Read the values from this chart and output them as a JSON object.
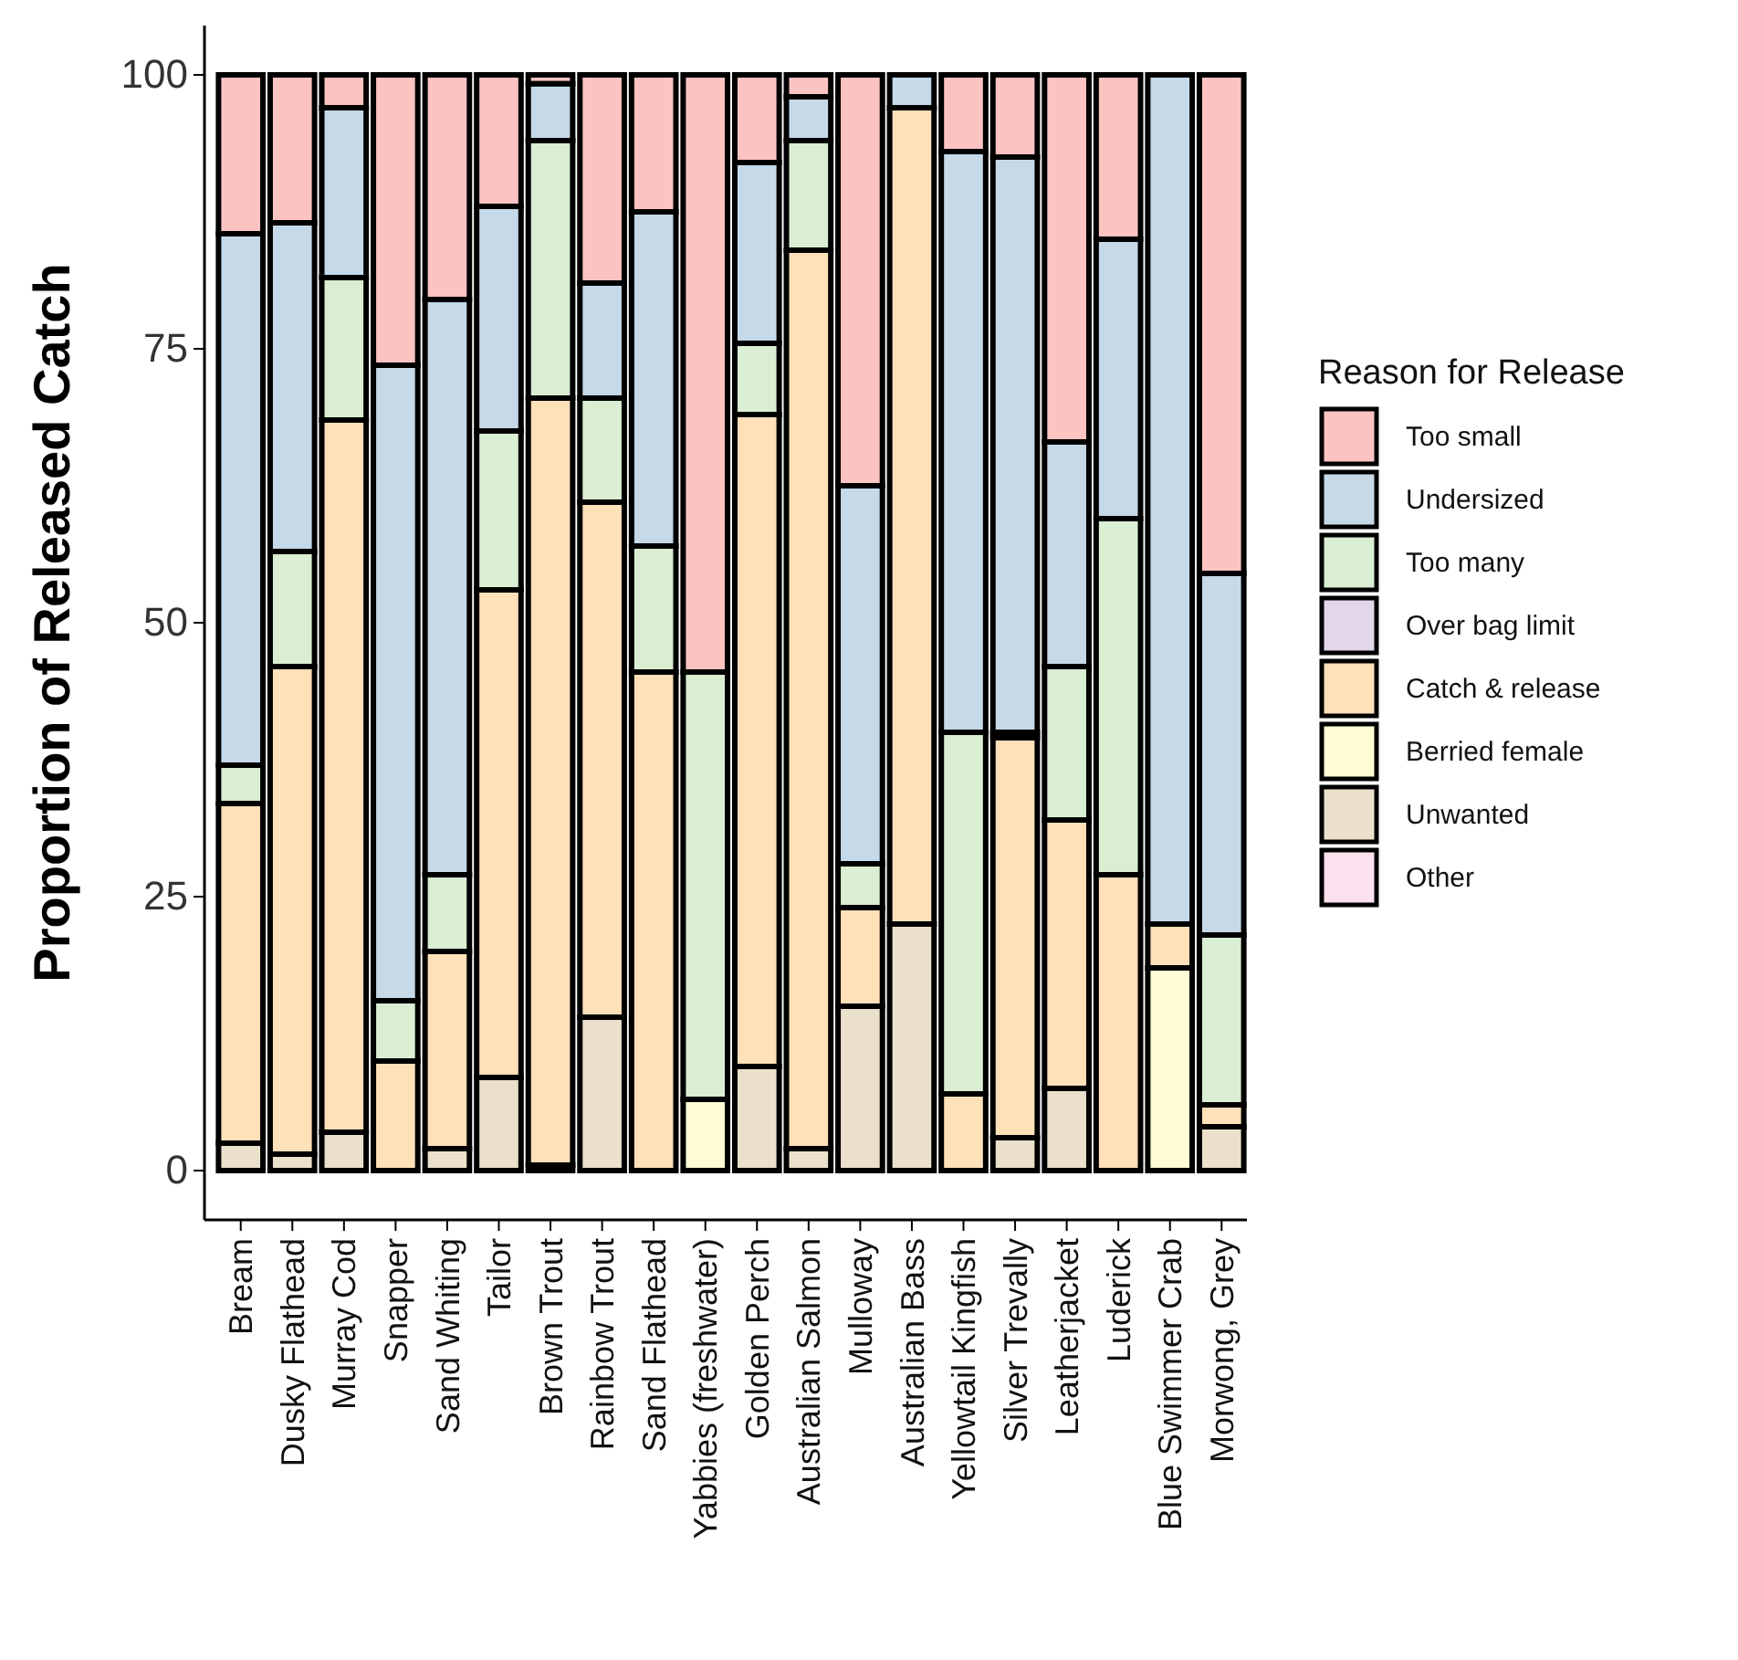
{
  "chart_data": {
    "type": "bar",
    "stacked": true,
    "ylabel": "Proportion of Released Catch",
    "legend_title": "Reason for Release",
    "legend": "right",
    "grid": false,
    "categories": [
      "Bream",
      "Dusky Flathead",
      "Murray Cod",
      "Snapper",
      "Sand Whiting",
      "Tailor",
      "Brown Trout",
      "Rainbow Trout",
      "Sand Flathead",
      "Yabbies (freshwater)",
      "Golden Perch",
      "Australian Salmon",
      "Mulloway",
      "Australian Bass",
      "Yellowtail Kingfish",
      "Silver Trevally",
      "Leatherjacket",
      "Luderick",
      "Blue Swimmer Crab",
      "Morwong, Grey"
    ],
    "ylim": [
      -4.5,
      104.5
    ],
    "yticks": [
      0,
      25,
      50,
      75,
      100
    ],
    "series": [
      {
        "name": "Unwanted",
        "color": "#ebe0cc",
        "values": [
          2.5,
          1.5,
          3.5,
          0,
          2,
          8.5,
          0.5,
          14,
          0,
          0,
          9.5,
          2,
          15,
          22.5,
          0,
          3,
          7.5,
          0,
          0,
          4
        ]
      },
      {
        "name": "Berried female",
        "color": "#fffdd4",
        "values": [
          0,
          0,
          0,
          0,
          0,
          0,
          0,
          0,
          0,
          6.5,
          0,
          0,
          0,
          0,
          0,
          0,
          0,
          0,
          18.5,
          0
        ]
      },
      {
        "name": "Catch & release",
        "color": "#fee0b9",
        "values": [
          31,
          44.5,
          65,
          10,
          18,
          44.5,
          70,
          47,
          45.5,
          0,
          59.5,
          82,
          9,
          74.5,
          7,
          36.5,
          24.5,
          27,
          4,
          2
        ]
      },
      {
        "name": "Over bag limit",
        "color": "#e2d6ea",
        "values": [
          0,
          0,
          0,
          0,
          0,
          0,
          0,
          0,
          0,
          0,
          0,
          0,
          0,
          0,
          0,
          0,
          0,
          0,
          0,
          0
        ]
      },
      {
        "name": "Too many",
        "color": "#d9eed3",
        "values": [
          3.5,
          10.5,
          13,
          5.5,
          7,
          14.5,
          23.5,
          9.5,
          11.5,
          39,
          6.5,
          10,
          4,
          0,
          33,
          0.5,
          14,
          32.5,
          0,
          15.5
        ]
      },
      {
        "name": "Undersized",
        "color": "#c6d9e8",
        "values": [
          48.5,
          30,
          15.5,
          58,
          52.5,
          20.5,
          5.2,
          10.5,
          30.5,
          0,
          16.5,
          4,
          34.5,
          3,
          53,
          52.5,
          20.5,
          25.5,
          77.5,
          33
        ]
      },
      {
        "name": "Too small",
        "color": "#fbc4c2",
        "values": [
          14.5,
          13.5,
          3,
          26.5,
          20.5,
          12,
          0.8,
          19,
          12.5,
          54.5,
          8,
          2,
          37.5,
          0,
          7,
          7.5,
          33.5,
          15,
          0,
          45.5
        ]
      },
      {
        "name": "Other",
        "color": "#fde0ee",
        "values": [
          0,
          0,
          0,
          0,
          0,
          0,
          0,
          0,
          0,
          0,
          0,
          0,
          0,
          0,
          0,
          0,
          0,
          0,
          0,
          0
        ]
      }
    ]
  }
}
